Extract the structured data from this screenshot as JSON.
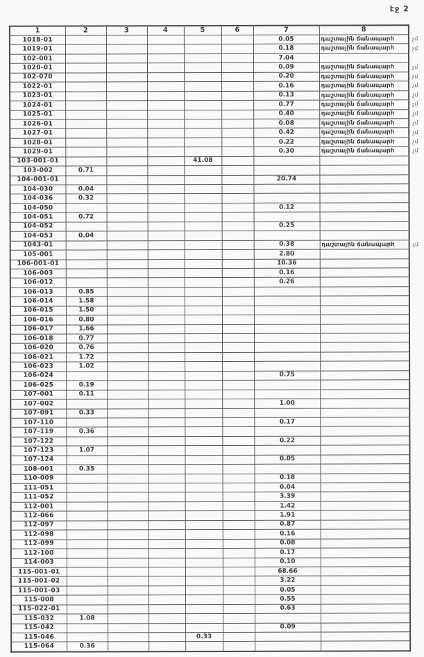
{
  "page": {
    "label": "էջ 2"
  },
  "table": {
    "headers": [
      "1",
      "2",
      "3",
      "4",
      "5",
      "6",
      "7",
      "8"
    ],
    "road_label": "դաշտային ճանապարհ",
    "margin_note": "չմ",
    "rows": [
      {
        "code": "1018-01",
        "c7": "0.05",
        "c8": "դաշտային ճանապարհ",
        "note": "չմ"
      },
      {
        "code": "1019-01",
        "c7": "0.18",
        "c8": "դաշտային ճանապարհ",
        "note": "չմ"
      },
      {
        "code": "102-001",
        "c7": "7.04"
      },
      {
        "code": "1020-01",
        "c7": "0.09",
        "c8": "դաշտային ճանապարհ",
        "note": "չմ"
      },
      {
        "code": "102-070",
        "c7": "0.20",
        "c8": "դաշտային ճանապարհ",
        "note": "չմ"
      },
      {
        "code": "1022-01",
        "c7": "0.16",
        "c8": "դաշտային ճանապարհ",
        "note": "չմ"
      },
      {
        "code": "1023-01",
        "c7": "0.13",
        "c8": "դաշտային ճանապարհ",
        "note": "չմ"
      },
      {
        "code": "1024-01",
        "c7": "0.77",
        "c8": "դաշտային ճանապարհ",
        "note": "չմ"
      },
      {
        "code": "1025-01",
        "c7": "0.40",
        "c8": "դաշտային ճանապարհ",
        "note": "չմ"
      },
      {
        "code": "1026-01",
        "c7": "0.08",
        "c8": "դաշտային ճանապարհ",
        "note": "չմ"
      },
      {
        "code": "1027-01",
        "c7": "0.42",
        "c8": "դաշտային ճանապարհ",
        "note": "չմ"
      },
      {
        "code": "1028-01",
        "c7": "0.22",
        "c8": "դաշտային ճանապարհ",
        "note": "չմ"
      },
      {
        "code": "1029-01",
        "c7": "0.30",
        "c8": "դաշտային ճանապարհ",
        "note": "չմ"
      },
      {
        "code": "103-001-01",
        "c5": "41.08"
      },
      {
        "code": "103-002",
        "c2": "0.71"
      },
      {
        "code": "104-001-01",
        "c7": "20.74"
      },
      {
        "code": "104-030",
        "c2": "0.04"
      },
      {
        "code": "104-036",
        "c2": "0.32"
      },
      {
        "code": "104-050",
        "c7": "0.12"
      },
      {
        "code": "104-051",
        "c2": "0.72"
      },
      {
        "code": "104-052",
        "c7": "0.25"
      },
      {
        "code": "104-053",
        "c2": "0.04"
      },
      {
        "code": "1043-01",
        "c7": "0.38",
        "c8": "դաշտային ճանապարհ",
        "note": "չմ"
      },
      {
        "code": "105-001",
        "c7": "2.80"
      },
      {
        "code": "106-001-01",
        "c7": "10.36"
      },
      {
        "code": "106-003",
        "c7": "0.16"
      },
      {
        "code": "106-012",
        "c7": "0.26"
      },
      {
        "code": "106-013",
        "c2": "0.85"
      },
      {
        "code": "106-014",
        "c2": "1.58"
      },
      {
        "code": "106-015",
        "c2": "1.50"
      },
      {
        "code": "106-016",
        "c2": "0.80"
      },
      {
        "code": "106-017",
        "c2": "1.66"
      },
      {
        "code": "106-018",
        "c2": "0.77"
      },
      {
        "code": "106-020",
        "c2": "0.76"
      },
      {
        "code": "106-021",
        "c2": "1.72"
      },
      {
        "code": "106-023",
        "c2": "1.02"
      },
      {
        "code": "106-024",
        "c7": "0.75"
      },
      {
        "code": "106-025",
        "c2": "0.19"
      },
      {
        "code": "107-001",
        "c2": "0.11"
      },
      {
        "code": "107-002",
        "c7": "1.00"
      },
      {
        "code": "107-091",
        "c2": "0.33"
      },
      {
        "code": "107-110",
        "c7": "0.17"
      },
      {
        "code": "107-119",
        "c2": "0.36"
      },
      {
        "code": "107-122",
        "c7": "0.22"
      },
      {
        "code": "107-123",
        "c2": "1.07"
      },
      {
        "code": "107-124",
        "c7": "0.05"
      },
      {
        "code": "108-001",
        "c2": "0.35"
      },
      {
        "code": "110-009",
        "c7": "0.18"
      },
      {
        "code": "111-051",
        "c7": "0.04"
      },
      {
        "code": "111-052",
        "c7": "3.39"
      },
      {
        "code": "112-001",
        "c7": "1.42"
      },
      {
        "code": "112-066",
        "c7": "1.91"
      },
      {
        "code": "112-097",
        "c7": "0.87"
      },
      {
        "code": "112-098",
        "c7": "0.16"
      },
      {
        "code": "112-099",
        "c7": "0.08"
      },
      {
        "code": "112-100",
        "c7": "0.17"
      },
      {
        "code": "114-003",
        "c7": "0.10"
      },
      {
        "code": "115-001-01",
        "c7": "68.66"
      },
      {
        "code": "115-001-02",
        "c7": "3.22"
      },
      {
        "code": "115-001-03",
        "c7": "0.05"
      },
      {
        "code": "115-008",
        "c7": "0.55"
      },
      {
        "code": "115-022-01",
        "c7": "0.63"
      },
      {
        "code": "115-032",
        "c2": "1.08"
      },
      {
        "code": "115-042",
        "c7": "0.09"
      },
      {
        "code": "115-046",
        "c5": "0.33"
      },
      {
        "code": "115-064",
        "c2": "0.36"
      }
    ]
  }
}
